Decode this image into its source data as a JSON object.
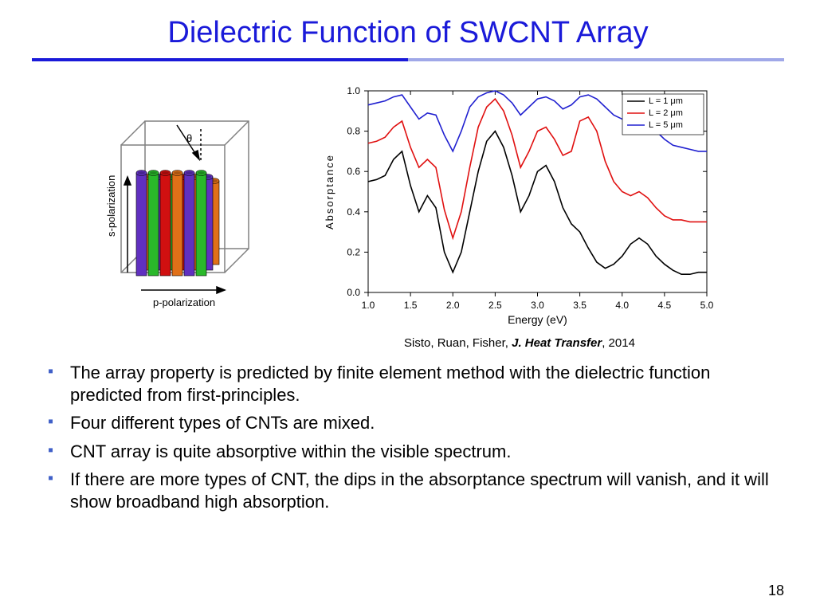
{
  "title": "Dielectric Function of SWCNT Array",
  "title_color": "#1a1ad9",
  "underline_colors": [
    "#1a1ad9",
    "#a0a8e8"
  ],
  "diagram": {
    "s_label": "s-polarization",
    "p_label": "p-polarization",
    "theta_label": "θ",
    "box_stroke": "#808080",
    "tube_colors": [
      "#d01010",
      "#e07018",
      "#6030c0",
      "#2ab82a"
    ],
    "arrow_color": "#000000"
  },
  "chart": {
    "type": "line",
    "xlabel": "Energy (eV)",
    "ylabel": "Absorptance",
    "xlim": [
      1.0,
      5.0
    ],
    "ylim": [
      0.0,
      1.0
    ],
    "xtick_step": 0.5,
    "ytick_step": 0.2,
    "xticks": [
      "1.0",
      "1.5",
      "2.0",
      "2.5",
      "3.0",
      "3.5",
      "4.0",
      "4.5",
      "5.0"
    ],
    "yticks": [
      "0.0",
      "0.2",
      "0.4",
      "0.6",
      "0.8",
      "1.0"
    ],
    "plot_bg": "#ffffff",
    "axis_color": "#000000",
    "axis_fontsize": 14,
    "tick_fontsize": 12,
    "line_width": 1.6,
    "legend": {
      "position": "top-right",
      "items": [
        {
          "label": "L = 1  μm",
          "color": "#000000"
        },
        {
          "label": "L = 2  μm",
          "color": "#e01010"
        },
        {
          "label": "L = 5  μm",
          "color": "#2020d0"
        }
      ]
    },
    "series": [
      {
        "name": "L1",
        "color": "#000000",
        "x": [
          1.0,
          1.1,
          1.2,
          1.3,
          1.4,
          1.5,
          1.6,
          1.7,
          1.8,
          1.9,
          2.0,
          2.1,
          2.2,
          2.3,
          2.4,
          2.5,
          2.6,
          2.7,
          2.8,
          2.9,
          3.0,
          3.1,
          3.2,
          3.3,
          3.4,
          3.5,
          3.6,
          3.7,
          3.8,
          3.9,
          4.0,
          4.1,
          4.2,
          4.3,
          4.4,
          4.5,
          4.6,
          4.7,
          4.8,
          4.9,
          5.0
        ],
        "y": [
          0.55,
          0.56,
          0.58,
          0.66,
          0.7,
          0.53,
          0.4,
          0.48,
          0.42,
          0.2,
          0.1,
          0.2,
          0.4,
          0.6,
          0.75,
          0.8,
          0.72,
          0.58,
          0.4,
          0.48,
          0.6,
          0.63,
          0.55,
          0.42,
          0.34,
          0.3,
          0.22,
          0.15,
          0.12,
          0.14,
          0.18,
          0.24,
          0.27,
          0.24,
          0.18,
          0.14,
          0.11,
          0.09,
          0.09,
          0.1,
          0.1
        ]
      },
      {
        "name": "L2",
        "color": "#e01010",
        "x": [
          1.0,
          1.1,
          1.2,
          1.3,
          1.4,
          1.5,
          1.6,
          1.7,
          1.8,
          1.9,
          2.0,
          2.1,
          2.2,
          2.3,
          2.4,
          2.5,
          2.6,
          2.7,
          2.8,
          2.9,
          3.0,
          3.1,
          3.2,
          3.3,
          3.4,
          3.5,
          3.6,
          3.7,
          3.8,
          3.9,
          4.0,
          4.1,
          4.2,
          4.3,
          4.4,
          4.5,
          4.6,
          4.7,
          4.8,
          4.9,
          5.0
        ],
        "y": [
          0.74,
          0.75,
          0.77,
          0.82,
          0.85,
          0.72,
          0.62,
          0.66,
          0.62,
          0.41,
          0.27,
          0.4,
          0.62,
          0.82,
          0.92,
          0.96,
          0.9,
          0.78,
          0.62,
          0.7,
          0.8,
          0.82,
          0.76,
          0.68,
          0.7,
          0.85,
          0.87,
          0.8,
          0.65,
          0.55,
          0.5,
          0.48,
          0.5,
          0.47,
          0.42,
          0.38,
          0.36,
          0.36,
          0.35,
          0.35,
          0.35
        ]
      },
      {
        "name": "L5",
        "color": "#2020d0",
        "x": [
          1.0,
          1.1,
          1.2,
          1.3,
          1.4,
          1.5,
          1.6,
          1.7,
          1.8,
          1.9,
          2.0,
          2.1,
          2.2,
          2.3,
          2.4,
          2.5,
          2.6,
          2.7,
          2.8,
          2.9,
          3.0,
          3.1,
          3.2,
          3.3,
          3.4,
          3.5,
          3.6,
          3.7,
          3.8,
          3.9,
          4.0,
          4.1,
          4.2,
          4.3,
          4.4,
          4.5,
          4.6,
          4.7,
          4.8,
          4.9,
          5.0
        ],
        "y": [
          0.93,
          0.94,
          0.95,
          0.97,
          0.98,
          0.92,
          0.86,
          0.89,
          0.88,
          0.78,
          0.7,
          0.8,
          0.92,
          0.97,
          0.99,
          1.0,
          0.98,
          0.94,
          0.88,
          0.92,
          0.96,
          0.97,
          0.95,
          0.91,
          0.93,
          0.97,
          0.98,
          0.96,
          0.92,
          0.88,
          0.86,
          0.85,
          0.86,
          0.84,
          0.8,
          0.76,
          0.73,
          0.72,
          0.71,
          0.7,
          0.7
        ]
      }
    ]
  },
  "citation": {
    "authors": "Sisto, Ruan, Fisher, ",
    "journal": "J. Heat Transfer",
    "year": ", 2014"
  },
  "bullets": [
    "The array property is predicted by finite element method with the dielectric function predicted from first-principles.",
    "Four different types of CNTs are mixed.",
    "CNT array is quite absorptive within the visible spectrum.",
    "If there are more types of CNT, the dips in the absorptance spectrum will vanish, and it will show broadband high absorption."
  ],
  "page_number": "18"
}
